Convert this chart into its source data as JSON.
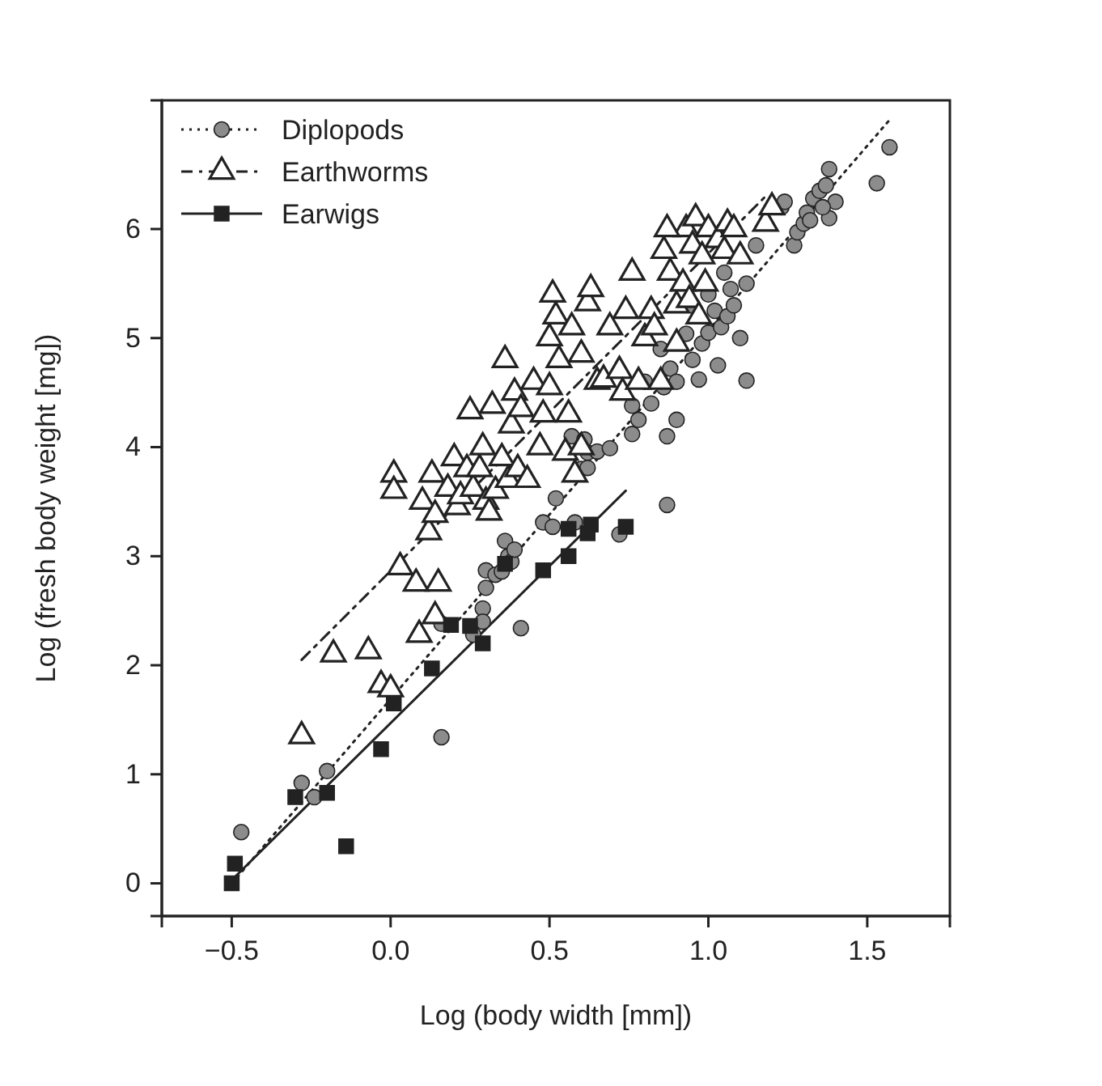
{
  "chart_data": {
    "type": "scatter",
    "xlabel": "Log (body width [mm])",
    "ylabel": "Log (fresh body weight [mg])",
    "xlim": [
      -0.72,
      1.76
    ],
    "ylim": [
      -0.3,
      7.18
    ],
    "xticks": [
      {
        "value": -0.5,
        "label": "−0.5"
      },
      {
        "value": 0,
        "label": "0.0"
      },
      {
        "value": 0.5,
        "label": "0.5"
      },
      {
        "value": 1,
        "label": "1.0"
      },
      {
        "value": 1.5,
        "label": "1.5"
      }
    ],
    "yticks": [
      0,
      1,
      2,
      3,
      4,
      5,
      6
    ],
    "grid": false,
    "legend": "top left",
    "series": [
      {
        "name": "Diplopods",
        "marker": "circle",
        "line_style": "dotted",
        "color": "#8c8c8c",
        "x": [
          -0.47,
          -0.28,
          -0.24,
          -0.2,
          0.16,
          0.16,
          0.26,
          0.29,
          0.29,
          0.3,
          0.3,
          0.33,
          0.35,
          0.36,
          0.37,
          0.38,
          0.39,
          0.41,
          0.48,
          0.52,
          0.51,
          0.58,
          0.57,
          0.6,
          0.61,
          0.62,
          0.62,
          0.65,
          0.69,
          0.72,
          0.76,
          0.76,
          0.78,
          0.87,
          0.8,
          0.82,
          0.85,
          0.86,
          0.87,
          0.88,
          0.9,
          0.9,
          0.93,
          0.95,
          0.95,
          0.97,
          0.98,
          1.0,
          1.0,
          1.02,
          1.03,
          1.04,
          1.05,
          1.06,
          1.07,
          1.08,
          1.1,
          1.12,
          1.12,
          1.15,
          1.23,
          1.24,
          1.27,
          1.28,
          1.3,
          1.31,
          1.33,
          1.35,
          1.37,
          1.38,
          1.38,
          1.4,
          1.53,
          1.57,
          1.32,
          1.36
        ],
        "values": [
          0.47,
          0.92,
          0.79,
          1.03,
          2.38,
          1.34,
          2.28,
          2.52,
          2.4,
          2.71,
          2.87,
          2.83,
          2.86,
          3.14,
          3.0,
          2.95,
          3.06,
          2.34,
          3.31,
          3.53,
          3.27,
          3.31,
          4.1,
          3.8,
          4.07,
          3.81,
          3.95,
          3.96,
          3.99,
          3.2,
          4.38,
          4.12,
          4.25,
          3.47,
          4.6,
          4.4,
          4.9,
          4.55,
          4.1,
          4.72,
          4.25,
          4.6,
          5.04,
          4.8,
          5.3,
          4.62,
          4.95,
          5.4,
          5.05,
          5.25,
          4.75,
          5.1,
          5.6,
          5.2,
          5.45,
          5.3,
          5.0,
          4.61,
          5.5,
          5.85,
          6.2,
          6.25,
          5.85,
          5.97,
          6.05,
          6.15,
          6.28,
          6.35,
          6.4,
          6.55,
          6.1,
          6.25,
          6.42,
          6.75,
          6.08,
          6.2
        ]
      },
      {
        "name": "Earthworms",
        "marker": "triangle",
        "line_style": "dashed",
        "color": "#222222",
        "x": [
          -0.28,
          -0.18,
          -0.07,
          -0.03,
          0.0,
          0.01,
          0.01,
          0.03,
          0.08,
          0.09,
          0.1,
          0.12,
          0.13,
          0.14,
          0.14,
          0.15,
          0.18,
          0.2,
          0.21,
          0.22,
          0.24,
          0.25,
          0.26,
          0.28,
          0.29,
          0.3,
          0.31,
          0.32,
          0.33,
          0.35,
          0.36,
          0.37,
          0.38,
          0.39,
          0.4,
          0.41,
          0.43,
          0.45,
          0.47,
          0.48,
          0.5,
          0.5,
          0.51,
          0.52,
          0.53,
          0.55,
          0.56,
          0.57,
          0.58,
          0.6,
          0.6,
          0.62,
          0.63,
          0.65,
          0.67,
          0.69,
          0.72,
          0.73,
          0.74,
          0.76,
          0.78,
          0.8,
          0.82,
          0.83,
          0.85,
          0.86,
          0.88,
          0.9,
          0.9,
          0.92,
          0.93,
          0.95,
          0.96,
          0.98,
          0.99,
          1.0,
          1.03,
          1.05,
          1.06,
          1.08,
          1.1,
          1.18,
          1.2,
          0.87,
          0.94,
          0.97
        ],
        "values": [
          1.35,
          2.1,
          2.13,
          1.82,
          1.78,
          3.75,
          3.6,
          2.9,
          2.75,
          2.28,
          3.5,
          3.22,
          3.75,
          2.45,
          3.38,
          2.75,
          3.62,
          3.9,
          3.45,
          3.55,
          3.8,
          4.33,
          3.62,
          3.8,
          4.0,
          3.5,
          3.4,
          4.38,
          3.6,
          3.9,
          4.8,
          3.7,
          4.2,
          4.5,
          3.8,
          4.35,
          3.7,
          4.6,
          4.0,
          4.3,
          5.0,
          4.55,
          5.4,
          5.2,
          4.8,
          3.95,
          4.3,
          5.1,
          3.75,
          4.85,
          4.0,
          5.32,
          5.45,
          4.6,
          4.62,
          5.1,
          4.7,
          4.5,
          5.25,
          5.6,
          4.6,
          5.0,
          5.25,
          5.1,
          4.6,
          5.8,
          5.6,
          4.95,
          5.3,
          5.5,
          6.0,
          5.85,
          6.1,
          5.75,
          5.5,
          6.0,
          5.9,
          5.8,
          6.05,
          6.0,
          5.75,
          6.05,
          6.2,
          6.0,
          5.35,
          5.2
        ]
      },
      {
        "name": "Earwigs",
        "marker": "square",
        "line_style": "solid",
        "color": "#222222",
        "x": [
          -0.5,
          -0.49,
          -0.3,
          -0.2,
          -0.14,
          -0.03,
          0.01,
          0.13,
          0.19,
          0.25,
          0.29,
          0.36,
          0.48,
          0.56,
          0.56,
          0.62,
          0.63,
          0.74
        ],
        "values": [
          0.0,
          0.18,
          0.79,
          0.83,
          0.34,
          1.23,
          1.65,
          1.97,
          2.37,
          2.36,
          2.2,
          2.93,
          2.87,
          3.0,
          3.25,
          3.21,
          3.29,
          3.27
        ]
      },
      {
        "type": "line",
        "line_style": "dotted",
        "color": "#222222",
        "x": [
          -0.5,
          1.57
        ],
        "values": [
          0.0,
          7.0
        ]
      },
      {
        "type": "line",
        "line_style": "dashed",
        "color": "#222222",
        "x": [
          -0.28,
          1.18
        ],
        "values": [
          2.05,
          6.3
        ]
      },
      {
        "type": "line",
        "line_style": "solid",
        "color": "#222222",
        "x": [
          -0.5,
          0.74
        ],
        "values": [
          0.03,
          3.6
        ]
      }
    ]
  }
}
